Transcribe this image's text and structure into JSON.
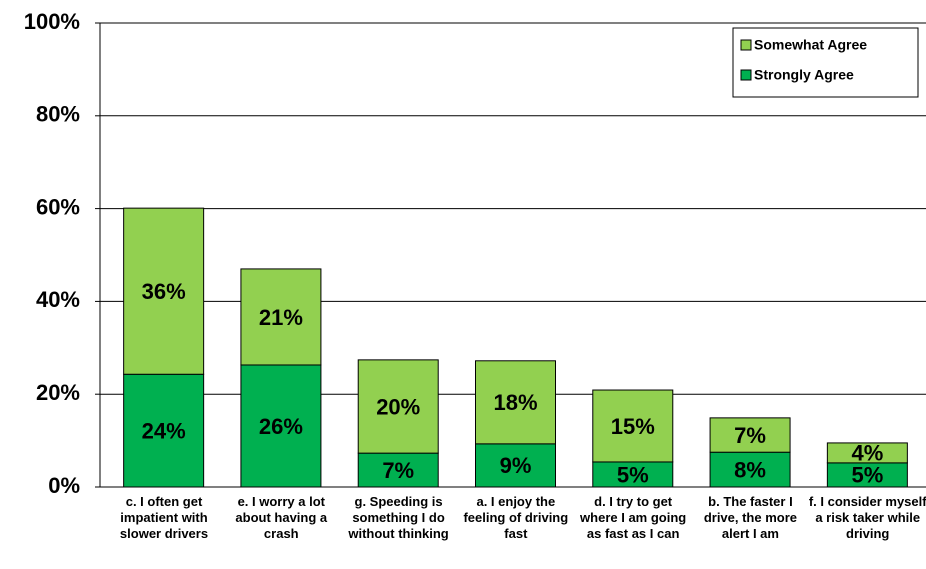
{
  "chart_data": {
    "type": "stacked_bar",
    "categories": [
      "c. I often get impatient with slower drivers",
      "e. I worry a lot about having a crash",
      "g. Speeding is something I do without thinking",
      "a. I enjoy the feeling of driving fast",
      "d. I try to get where I am going as fast as I can",
      "b. The faster I drive, the more alert I am",
      "f. I consider myself a risk taker while driving"
    ],
    "series": [
      {
        "name": "Strongly Agree",
        "color": "#00b050",
        "values": [
          24.3,
          26.3,
          7.3,
          9.3,
          5.4,
          7.5,
          5.2
        ],
        "value_labels": [
          "24%",
          "26%",
          "7%",
          "9%",
          "5%",
          "8%",
          "5%"
        ]
      },
      {
        "name": "Somewhat Agree",
        "color": "#92d050",
        "values": [
          35.8,
          20.7,
          20.1,
          17.9,
          15.5,
          7.4,
          4.3
        ],
        "value_labels": [
          "36%",
          "21%",
          "20%",
          "18%",
          "15%",
          "7%",
          "4%"
        ]
      }
    ],
    "ylim": [
      0,
      100
    ],
    "yticks": [
      {
        "value": 0,
        "label": "0%"
      },
      {
        "value": 20,
        "label": "20%"
      },
      {
        "value": 40,
        "label": "40%"
      },
      {
        "value": 60,
        "label": "60%"
      },
      {
        "value": 80,
        "label": "80%"
      },
      {
        "value": 100,
        "label": "100%"
      }
    ],
    "grid": true,
    "legend": "upper right"
  }
}
